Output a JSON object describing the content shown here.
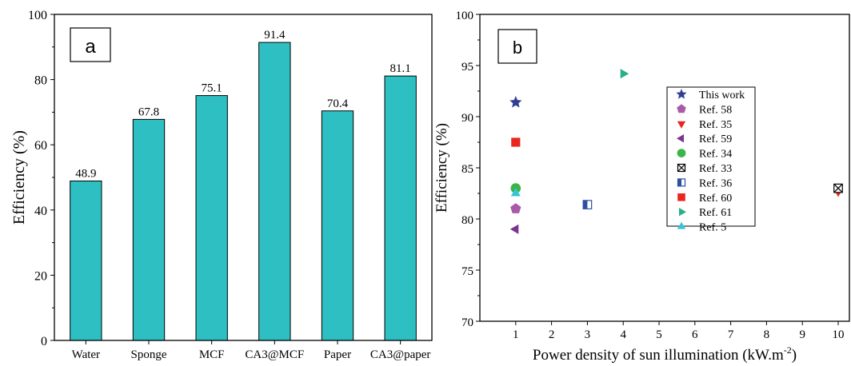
{
  "chart_data": [
    {
      "type": "bar",
      "panel_label": "a",
      "categories": [
        "Water",
        "Sponge",
        "MCF",
        "CA3@MCF",
        "Paper",
        "CA3@paper"
      ],
      "values": [
        48.9,
        67.8,
        75.1,
        91.4,
        70.4,
        81.1
      ],
      "data_labels": [
        "48.9",
        "67.8",
        "75.1",
        "91.4",
        "70.4",
        "81.1"
      ],
      "ylabel": "Efficiency (%)",
      "xlabel": "",
      "ylim": [
        0,
        100
      ],
      "yticks": [
        0,
        20,
        40,
        60,
        80,
        100
      ],
      "bar_color": "#2ebfc2",
      "grid": false
    },
    {
      "type": "scatter",
      "panel_label": "b",
      "xlabel_main": "Power density of sun illumination (kW.m",
      "xlabel_sup": "-2",
      "xlabel_tail": ")",
      "ylabel": "Efficiency (%)",
      "xlim": [
        0,
        10
      ],
      "ylim": [
        70,
        100
      ],
      "xticks": [
        1,
        2,
        3,
        4,
        5,
        6,
        7,
        8,
        9,
        10
      ],
      "yticks": [
        70,
        75,
        80,
        85,
        90,
        95,
        100
      ],
      "grid": false,
      "legend_position": "center-right",
      "series": [
        {
          "name": "This work",
          "marker": "star",
          "color": "#2e3f94",
          "points": [
            [
              1,
              91.4
            ]
          ]
        },
        {
          "name": "Ref. 58",
          "marker": "pentagon",
          "color": "#a95aa8",
          "points": [
            [
              1,
              81.0
            ]
          ]
        },
        {
          "name": "Ref. 35",
          "marker": "triangle-down",
          "color": "#e8281f",
          "points": [
            [
              10,
              82.7
            ]
          ]
        },
        {
          "name": "Ref. 59",
          "marker": "triangle-left",
          "color": "#7b3590",
          "points": [
            [
              1,
              79.0
            ]
          ]
        },
        {
          "name": "Ref. 34",
          "marker": "circle",
          "color": "#3bb54a",
          "points": [
            [
              1,
              83.0
            ]
          ]
        },
        {
          "name": "Ref. 33",
          "marker": "crossed-square",
          "color": "#000000",
          "points": [
            [
              10,
              83.0
            ]
          ]
        },
        {
          "name": "Ref. 36",
          "marker": "half-square",
          "color": "#2e4fa3",
          "points": [
            [
              3,
              81.4
            ]
          ]
        },
        {
          "name": "Ref. 60",
          "marker": "square",
          "color": "#e8281f",
          "points": [
            [
              1,
              87.5
            ]
          ]
        },
        {
          "name": "Ref. 61",
          "marker": "triangle-right",
          "color": "#27b08a",
          "points": [
            [
              4,
              94.2
            ]
          ]
        },
        {
          "name": "Ref. 5",
          "marker": "triangle-up",
          "color": "#38c4d8",
          "points": [
            [
              1,
              82.5
            ]
          ]
        }
      ]
    }
  ]
}
